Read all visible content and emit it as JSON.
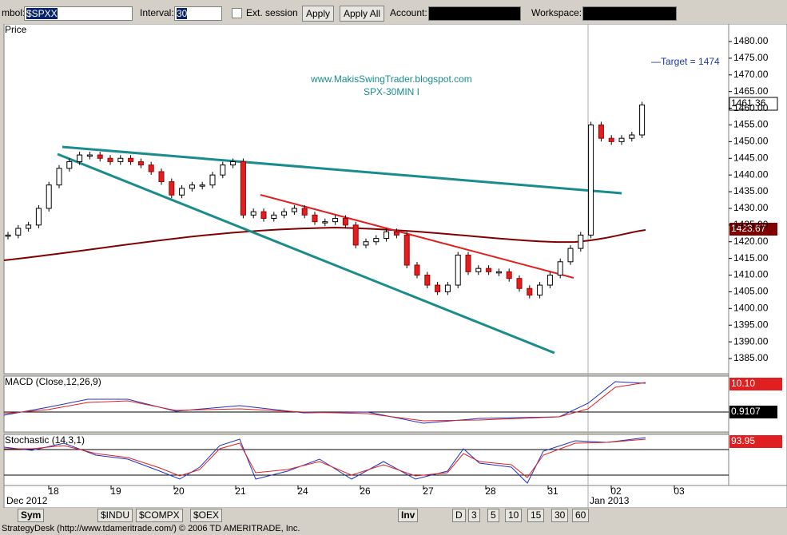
{
  "toolbar": {
    "symbol_label": "mbol:",
    "symbol": "$SPXX",
    "interval_label": "Interval:",
    "interval": "30",
    "ext_session": "Ext. session",
    "apply": "Apply",
    "apply_all": "Apply All",
    "account_label": "Account:",
    "workspace_label": "Workspace:"
  },
  "price_panel": {
    "label": "Price",
    "watermark": "www.MakisSwingTrader.blogspot.com",
    "subtitle": "SPX-30MIN I",
    "target": "—Target = 1474",
    "last_price": "1461.36",
    "ma_price": "1423.67",
    "yticks": [
      {
        "value": 1480,
        "label": "1480.00"
      },
      {
        "value": 1475,
        "label": "1475.00"
      },
      {
        "value": 1470,
        "label": "1470.00"
      },
      {
        "value": 1465,
        "label": "1465.00"
      },
      {
        "value": 1460,
        "label": "1460.00"
      },
      {
        "value": 1455,
        "label": "1455.00"
      },
      {
        "value": 1450,
        "label": "1450.00"
      },
      {
        "value": 1445,
        "label": "1445.00"
      },
      {
        "value": 1440,
        "label": "1440.00"
      },
      {
        "value": 1435,
        "label": "1435.00"
      },
      {
        "value": 1430,
        "label": "1430.00"
      },
      {
        "value": 1425,
        "label": "1425.00"
      },
      {
        "value": 1420,
        "label": "1420.00"
      },
      {
        "value": 1415,
        "label": "1415.00"
      },
      {
        "value": 1410,
        "label": "1410.00"
      },
      {
        "value": 1405,
        "label": "1405.00"
      },
      {
        "value": 1400,
        "label": "1400.00"
      },
      {
        "value": 1395,
        "label": "1395.00"
      },
      {
        "value": 1390,
        "label": "1390.00"
      },
      {
        "value": 1385,
        "label": "1385.00"
      }
    ],
    "closes": [
      1422,
      1424,
      1425,
      1430,
      1437,
      1442,
      1444,
      1446,
      1446,
      1445,
      1444,
      1445,
      1444,
      1443,
      1441,
      1438,
      1434,
      1436,
      1437,
      1437,
      1440,
      1443,
      1444,
      1428,
      1429,
      1427,
      1428,
      1429,
      1430,
      1428,
      1426,
      1426,
      1427,
      1425,
      1419,
      1420,
      1421,
      1423,
      1422,
      1413,
      1410,
      1407,
      1405,
      1407,
      1416,
      1411,
      1412,
      1411,
      1411,
      1409,
      1406,
      1404,
      1407,
      1410,
      1414,
      1418,
      1422,
      1455,
      1451,
      1450,
      1451,
      1452,
      1461
    ]
  },
  "macd_panel": {
    "label": "MACD (Close,12,26,9)",
    "value": "10.10",
    "signal": "0.9107"
  },
  "stoch_panel": {
    "label": "Stochastic (14,3,1)",
    "value": "93.95"
  },
  "dates": [
    "18",
    "19",
    "20",
    "21",
    "24",
    "26",
    "27",
    "28",
    "31",
    "02",
    "03"
  ],
  "month_left": "Dec 2012",
  "month_right": "Jan 2013",
  "tabs": [
    "Sym",
    "$INDU",
    "$COMPX",
    "$OEX"
  ],
  "intervals": [
    "Inv",
    "D",
    "3",
    "5",
    "10",
    "15",
    "30",
    "60"
  ],
  "status": "StrategyDesk (http://www.tdameritrade.com/) © 2006 TD AMERITRADE, Inc."
}
